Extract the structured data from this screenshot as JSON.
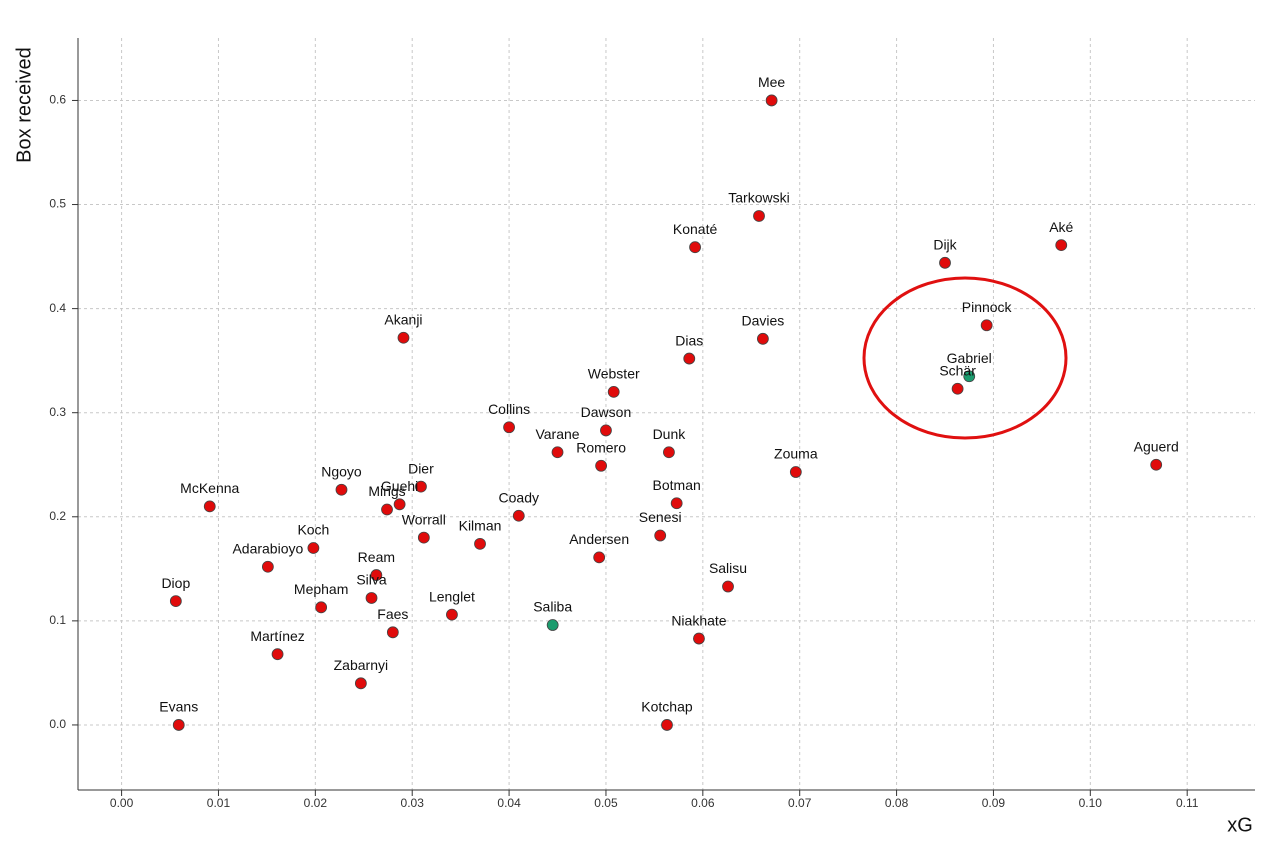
{
  "chart_data": {
    "type": "scatter",
    "x_label": "xG",
    "y_label": "Box received",
    "xlim": [
      -0.0045,
      0.117
    ],
    "ylim": [
      -0.0625,
      0.66
    ],
    "xticks": [
      {
        "value": 0,
        "label": "0.00"
      },
      {
        "value": 0.01,
        "label": "0.01"
      },
      {
        "value": 0.02,
        "label": "0.02"
      },
      {
        "value": 0.03,
        "label": "0.03"
      },
      {
        "value": 0.04,
        "label": "0.04"
      },
      {
        "value": 0.05,
        "label": "0.05"
      },
      {
        "value": 0.06,
        "label": "0.06"
      },
      {
        "value": 0.07,
        "label": "0.07"
      },
      {
        "value": 0.08,
        "label": "0.08"
      },
      {
        "value": 0.09,
        "label": "0.09"
      },
      {
        "value": 0.1,
        "label": "0.10"
      },
      {
        "value": 0.11,
        "label": "0.11"
      }
    ],
    "yticks": [
      {
        "value": 0,
        "label": "0.0"
      },
      0.1,
      0.2,
      0.3,
      0.4,
      0.5,
      0.6
    ],
    "grid": true,
    "labels": [
      "Mee",
      "Tarkowski",
      "Konaté",
      "Dijk",
      "Aké",
      "Pinnock",
      "Gabriel",
      "Schär",
      "Aguerd",
      "Akanji",
      "Davies",
      "Dias",
      "Webster",
      "Collins",
      "Dawson",
      "Varane",
      "Romero",
      "Dunk",
      "Zouma",
      "Botman",
      "Senesi",
      "Andersen",
      "Salisu",
      "Niakhate",
      "Kotchap",
      "Saliba",
      "Lenglet",
      "Kilman",
      "Coady",
      "Worrall",
      "Dier",
      "Guehi",
      "Mings",
      "Ngoyo",
      "McKenna",
      "Koch",
      "Adarabioyo",
      "Ream",
      "Silva",
      "Mepham",
      "Faes",
      "Diop",
      "Martínez",
      "Zabarnyi",
      "Evans"
    ],
    "x": [
      0.0671,
      0.0658,
      0.0592,
      0.085,
      0.097,
      0.0893,
      0.0875,
      0.0863,
      0.1068,
      0.0291,
      0.0662,
      0.0586,
      0.0508,
      0.04,
      0.05,
      0.045,
      0.0495,
      0.0565,
      0.0696,
      0.0573,
      0.0556,
      0.0493,
      0.0626,
      0.0596,
      0.0563,
      0.0445,
      0.0341,
      0.037,
      0.041,
      0.0312,
      0.0309,
      0.0287,
      0.0274,
      0.0227,
      0.0091,
      0.0198,
      0.0151,
      0.0263,
      0.0258,
      0.0206,
      0.028,
      0.0056,
      0.0161,
      0.0247,
      0.0059
    ],
    "values": [
      0.6,
      0.489,
      0.459,
      0.444,
      0.461,
      0.384,
      0.335,
      0.323,
      0.25,
      0.372,
      0.371,
      0.352,
      0.32,
      0.286,
      0.283,
      0.262,
      0.249,
      0.262,
      0.243,
      0.213,
      0.182,
      0.161,
      0.133,
      0.083,
      0.0,
      0.096,
      0.106,
      0.174,
      0.201,
      0.18,
      0.229,
      0.212,
      0.207,
      0.226,
      0.21,
      0.17,
      0.152,
      0.144,
      0.122,
      0.113,
      0.089,
      0.119,
      0.068,
      0.04,
      0.0
    ],
    "colors": [
      "#e00b0b",
      "#e00b0b",
      "#e00b0b",
      "#e00b0b",
      "#e00b0b",
      "#e00b0b",
      "#1b9c6e",
      "#e00b0b",
      "#e00b0b",
      "#e00b0b",
      "#e00b0b",
      "#e00b0b",
      "#e00b0b",
      "#e00b0b",
      "#e00b0b",
      "#e00b0b",
      "#e00b0b",
      "#e00b0b",
      "#e00b0b",
      "#e00b0b",
      "#e00b0b",
      "#e00b0b",
      "#e00b0b",
      "#e00b0b",
      "#e00b0b",
      "#1b9c6e",
      "#e00b0b",
      "#e00b0b",
      "#e00b0b",
      "#e00b0b",
      "#e00b0b",
      "#e00b0b",
      "#e00b0b",
      "#e00b0b",
      "#e00b0b",
      "#e00b0b",
      "#e00b0b",
      "#e00b0b",
      "#e00b0b",
      "#e00b0b",
      "#e00b0b",
      "#e00b0b",
      "#e00b0b",
      "#e00b0b",
      "#e00b0b"
    ]
  }
}
